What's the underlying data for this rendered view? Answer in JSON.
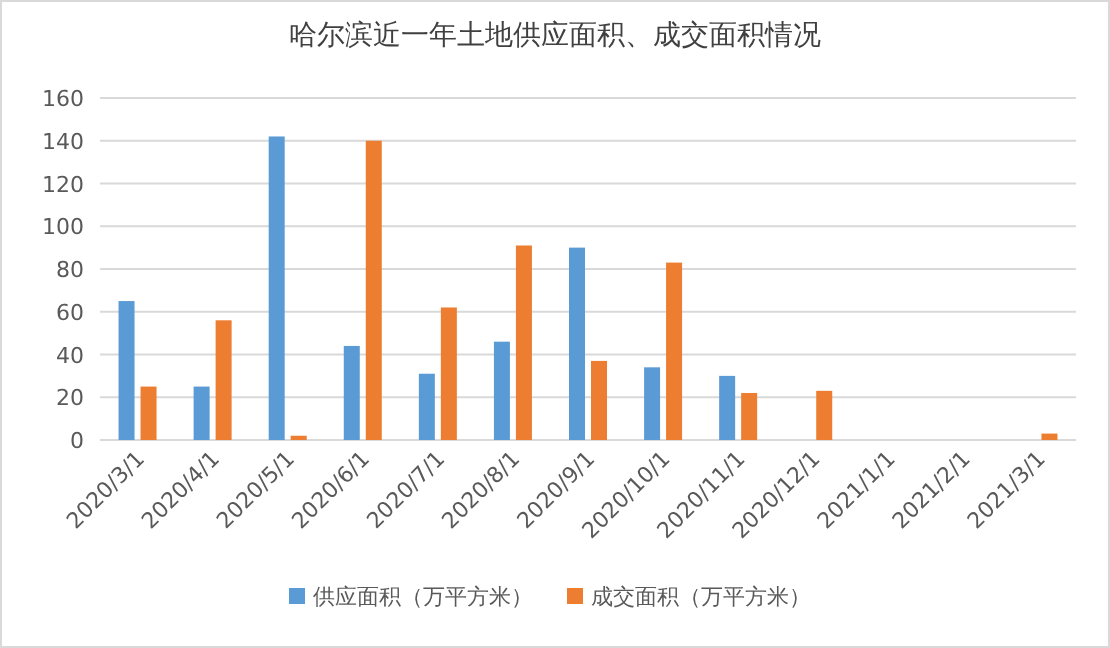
{
  "chart_data": {
    "type": "bar",
    "title": "哈尔滨近一年土地供应面积、成交面积情况",
    "categories": [
      "2020/3/1",
      "2020/4/1",
      "2020/5/1",
      "2020/6/1",
      "2020/7/1",
      "2020/8/1",
      "2020/9/1",
      "2020/10/1",
      "2020/11/1",
      "2020/12/1",
      "2021/1/1",
      "2021/2/1",
      "2021/3/1"
    ],
    "series": [
      {
        "name": "供应面积（万平方米）",
        "color": "#5b9bd5",
        "values": [
          65,
          25,
          142,
          44,
          31,
          46,
          90,
          34,
          30,
          null,
          null,
          null,
          null
        ]
      },
      {
        "name": "成交面积（万平方米）",
        "color": "#ed7d31",
        "values": [
          25,
          56,
          2,
          140,
          62,
          91,
          37,
          83,
          22,
          23,
          null,
          null,
          3
        ]
      }
    ],
    "ylim": [
      0,
      160
    ],
    "yticks": [
      0,
      20,
      40,
      60,
      80,
      100,
      120,
      140,
      160
    ],
    "grid": "y",
    "legend": "bottom"
  }
}
